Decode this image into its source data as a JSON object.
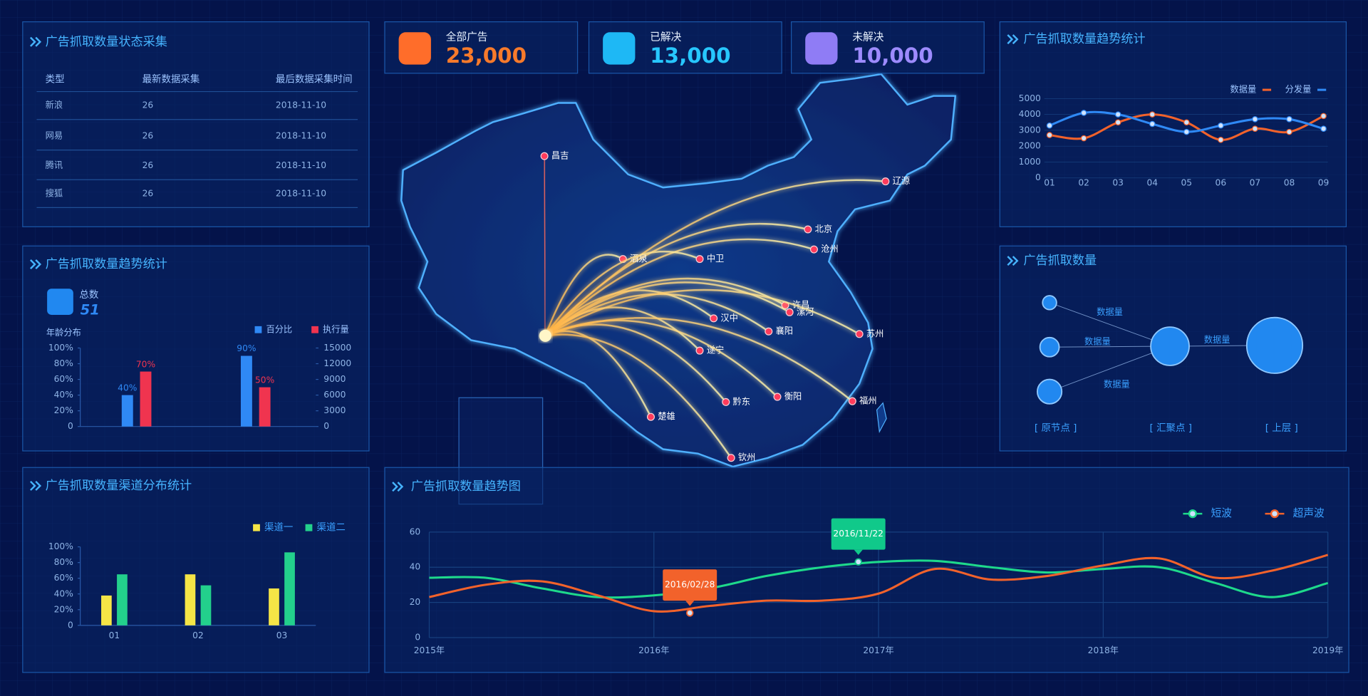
{
  "stats": [
    {
      "label": "全部广告",
      "value": "23,000"
    },
    {
      "label": "已解决",
      "value": "13,000"
    },
    {
      "label": "未解决",
      "value": "10,000"
    }
  ],
  "status_table": {
    "title": "广告抓取数量状态采集",
    "columns": [
      "类型",
      "最新数据采集",
      "最后数据采集时间"
    ],
    "rows": [
      [
        "新浪",
        "26",
        "2018-11-10"
      ],
      [
        "网易",
        "26",
        "2018-11-10"
      ],
      [
        "腾讯",
        "26",
        "2018-11-10"
      ],
      [
        "搜狐",
        "26",
        "2018-11-10"
      ]
    ]
  },
  "trend_stats": {
    "title": "广告抓取数量趋势统计",
    "total_label": "总数",
    "total": 51,
    "chart_data": {
      "type": "bar",
      "subtitle": "年龄分布",
      "categories": [
        null,
        null
      ],
      "series": [
        {
          "name": "百分比",
          "color": "#2f89f5",
          "values": [
            40,
            90
          ],
          "value_labels": [
            "40%",
            "90%"
          ]
        },
        {
          "name": "执行量",
          "color": "#f0344f",
          "values": [
            70,
            50
          ],
          "value_labels": [
            "70%",
            "50%"
          ]
        }
      ],
      "ylim": [
        0,
        100
      ],
      "yticks": [
        0,
        {
          "value": 20,
          "label": "20%"
        },
        {
          "value": 40,
          "label": "40%"
        },
        {
          "value": 60,
          "label": "60%"
        },
        {
          "value": 80,
          "label": "80%"
        },
        {
          "value": 100,
          "label": "100%"
        }
      ],
      "y2lim": [
        0,
        15000
      ],
      "y2ticks": [
        0,
        3000,
        6000,
        9000,
        12000,
        15000
      ]
    }
  },
  "line_trend": {
    "title": "广告抓取数量趋势统计",
    "chart_data": {
      "type": "line",
      "categories": [
        "01",
        "02",
        "03",
        "04",
        "05",
        "06",
        "07",
        "08",
        "09"
      ],
      "series": [
        {
          "name": "数据量",
          "color": "#f2622b",
          "values": [
            2700,
            2500,
            3500,
            4000,
            3500,
            2400,
            3100,
            2900,
            3900
          ]
        },
        {
          "name": "分发量",
          "color": "#2f89f5",
          "values": [
            3300,
            4100,
            4000,
            3400,
            2900,
            3300,
            3700,
            3700,
            3100
          ]
        }
      ],
      "ylim": [
        0,
        5000
      ],
      "yticks": [
        0,
        1000,
        2000,
        3000,
        4000,
        5000
      ]
    }
  },
  "flow": {
    "title": "广告抓取数量",
    "edge_labels": [
      "数据量",
      "数据量",
      "数据量",
      "数据量"
    ],
    "columns": [
      "[ 原节点 ]",
      "[ 汇聚点 ]",
      "[ 上层 ]"
    ]
  },
  "channel": {
    "title": "广告抓取数量渠道分布统计",
    "chart_data": {
      "type": "bar",
      "categories": [
        "01",
        "02",
        "03"
      ],
      "series": [
        {
          "name": "渠道一",
          "color": "#f5e546",
          "values": [
            38,
            65,
            47
          ]
        },
        {
          "name": "渠道二",
          "color": "#23d08c",
          "values": [
            65,
            51,
            93
          ]
        }
      ],
      "ylim": [
        0,
        100
      ],
      "yticks": [
        0,
        {
          "value": 20,
          "label": "20%"
        },
        {
          "value": 40,
          "label": "40%"
        },
        {
          "value": 60,
          "label": "60%"
        },
        {
          "value": 80,
          "label": "80%"
        },
        {
          "value": 100,
          "label": "100%"
        }
      ]
    }
  },
  "trend_chart": {
    "title": "广告抓取数量趋势图",
    "chart_data": {
      "type": "line",
      "x": [
        2015,
        2015.25,
        2015.5,
        2015.75,
        2016,
        2016.25,
        2016.5,
        2016.75,
        2017,
        2017.25,
        2017.5,
        2017.75,
        2018,
        2018.25,
        2018.5,
        2018.75,
        2019
      ],
      "series": [
        {
          "name": "短波",
          "color": "#1ed98b",
          "values": [
            34,
            34,
            28,
            23,
            24,
            28,
            35,
            40,
            43,
            43.6,
            40,
            37,
            39,
            40,
            31,
            23,
            31
          ]
        },
        {
          "name": "超声波",
          "color": "#f2622b",
          "values": [
            23,
            30,
            32,
            24,
            15,
            18,
            21,
            21,
            25,
            39,
            33,
            35,
            41,
            45,
            34,
            38,
            47
          ]
        }
      ],
      "xlim": [
        2015,
        2019
      ],
      "xticks": [
        {
          "value": 2015,
          "label": "2015年"
        },
        {
          "value": 2016,
          "label": "2016年"
        },
        {
          "value": 2017,
          "label": "2017年"
        },
        {
          "value": 2018,
          "label": "2018年"
        },
        {
          "value": 2019,
          "label": "2019年"
        }
      ],
      "ylim": [
        0,
        60
      ],
      "yticks": [
        0,
        20,
        40,
        60
      ],
      "annotations": [
        {
          "text": "2016/11/22",
          "x": 2016.91,
          "y": 43,
          "color": "#10c98a"
        },
        {
          "text": "2016/02/28",
          "x": 2016.16,
          "y": 14,
          "color": "#f2622b"
        }
      ]
    }
  },
  "map": {
    "cities": [
      "昌吉",
      "辽源",
      "北京",
      "沧州",
      "酒泉",
      "中卫",
      "汉中",
      "许昌",
      "漯河",
      "襄阳",
      "苏州",
      "遂宁",
      "黔东",
      "衡阳",
      "福州",
      "楚雄",
      "钦州"
    ]
  }
}
